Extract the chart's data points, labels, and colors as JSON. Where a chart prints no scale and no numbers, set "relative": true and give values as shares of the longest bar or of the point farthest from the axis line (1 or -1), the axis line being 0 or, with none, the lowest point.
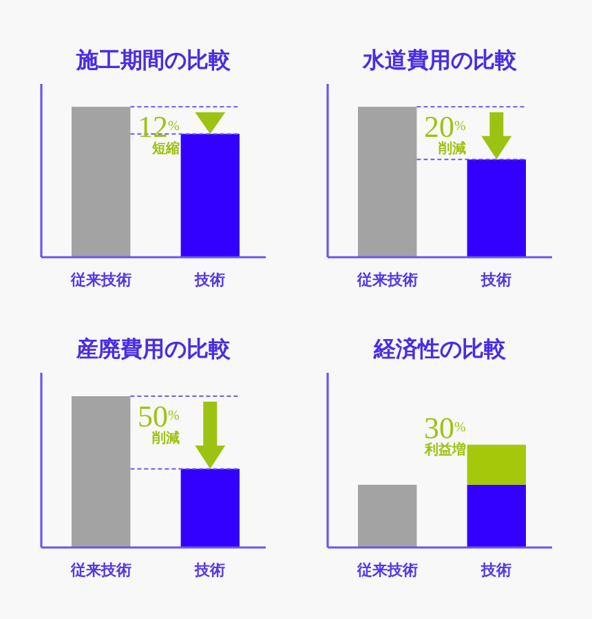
{
  "chart_data": [
    {
      "type": "bar",
      "title": "施工期間の比較",
      "categories": [
        "従来技術",
        "技術"
      ],
      "relative": true,
      "values": [
        1,
        0.82
      ],
      "colors": [
        "#a3a3a3",
        "#3300ff"
      ],
      "ref_lines": [
        {
          "axis": "y",
          "value": 1,
          "color": "#6a58f0",
          "line_style": "dashed"
        },
        {
          "axis": "y",
          "value": 0.82,
          "color": "#6a58f0",
          "line_style": "dashed"
        }
      ],
      "annotations": [
        "12%",
        "短縮"
      ]
    },
    {
      "type": "bar",
      "title": "水道費用の比較",
      "categories": [
        "従来技術",
        "技術"
      ],
      "relative": true,
      "values": [
        1,
        0.65
      ],
      "colors": [
        "#a3a3a3",
        "#3300ff"
      ],
      "ref_lines": [
        {
          "axis": "y",
          "value": 1,
          "color": "#6a58f0",
          "line_style": "dashed"
        },
        {
          "axis": "y",
          "value": 0.65,
          "color": "#6a58f0",
          "line_style": "dashed"
        }
      ],
      "annotations": [
        "20%",
        "削減"
      ]
    },
    {
      "type": "bar",
      "title": "産廃費用の比較",
      "categories": [
        "従来技術",
        "技術"
      ],
      "relative": true,
      "values": [
        1,
        0.52
      ],
      "colors": [
        "#a3a3a3",
        "#3300ff"
      ],
      "ref_lines": [
        {
          "axis": "y",
          "value": 1,
          "color": "#6a58f0",
          "line_style": "dashed"
        },
        {
          "axis": "y",
          "value": 0.52,
          "color": "#6a58f0",
          "line_style": "dashed"
        }
      ],
      "annotations": [
        "50%",
        "削減"
      ]
    },
    {
      "type": "bar",
      "title": "経済性の比較",
      "categories": [
        "従来技術",
        "技術"
      ],
      "relative": true,
      "stacked": true,
      "series": [
        {
          "values": [
            0.61,
            0.61
          ],
          "colors": [
            "#a3a3a3",
            "#3300ff"
          ]
        },
        {
          "values": [
            null,
            0.39
          ],
          "color": "#a5c80a"
        }
      ],
      "annotations": [
        "30%",
        "利益増"
      ]
    }
  ]
}
